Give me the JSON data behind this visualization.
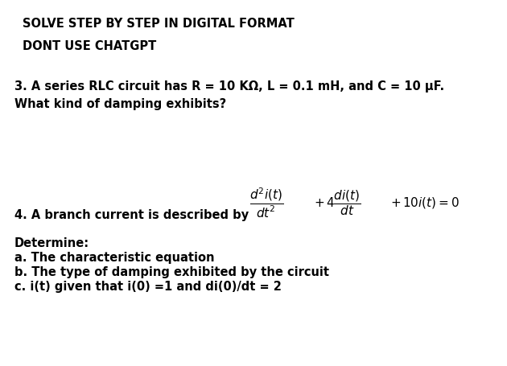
{
  "bg_color": "#ffffff",
  "line1": "SOLVE STEP BY STEP IN DIGITAL FORMAT",
  "line2": "DONT USE CHATGPT",
  "q3_line1": "3. A series RLC circuit has R = 10 KΩ, L = 0.1 mH, and C = 10 μF.",
  "q3_line2": "What kind of damping exhibits?",
  "q4_label": "4. A branch current is described by",
  "determine": "Determine:",
  "det_a": "a. The characteristic equation",
  "det_b": "b. The type of damping exhibited by the circuit",
  "det_c": "c. i(t) given that i(0) =1 and di(0)/dt = 2",
  "text_color": "#000000",
  "bg_color_hex": "#ffffff",
  "fs_bold": 10.5,
  "fs_eq": 11
}
